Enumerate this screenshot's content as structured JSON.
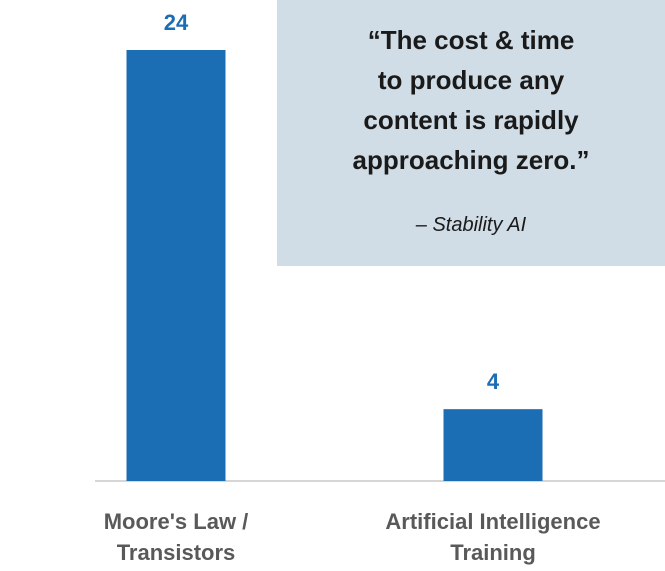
{
  "chart_data": {
    "type": "bar",
    "categories": [
      [
        "Moore's Law /",
        "Transistors"
      ],
      [
        "Artificial Intelligence",
        "Training"
      ]
    ],
    "values": [
      24,
      4
    ],
    "color": "#1b6db4",
    "label_color": "#1b6db4",
    "annotation": {
      "quote_lines": [
        "“The cost & time",
        "to produce any",
        "content is rapidly",
        "approaching zero.”"
      ],
      "source": "– Stability AI"
    }
  }
}
